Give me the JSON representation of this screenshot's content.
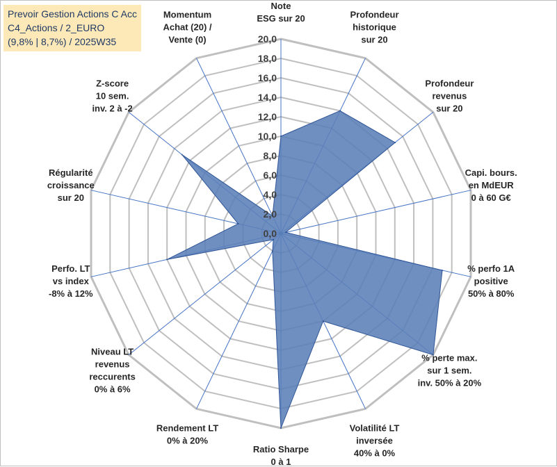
{
  "title": {
    "line1": "Prevoir Gestion Actions C Acc",
    "line2": "C4_Actions / 2_EURO",
    "line3": "(9,8% | 8,7%) / 2025W35"
  },
  "colors": {
    "fill": "#5b80b8",
    "stroke": "#2f5597",
    "grid": "#bfbfbf",
    "spoke": "#4472c4",
    "title_bg": "#fde9b8",
    "title_text": "#1f3864"
  },
  "chart_data": {
    "type": "radar",
    "rmin": 0,
    "rmax": 20,
    "step": 2,
    "ticks": [
      "0,0",
      "2,0",
      "4,0",
      "6,0",
      "8,0",
      "10,0",
      "12,0",
      "14,0",
      "16,0",
      "18,0",
      "20,0"
    ],
    "axes": [
      {
        "label": [
          "Note",
          "ESG sur 20"
        ],
        "value": 10
      },
      {
        "label": [
          "Profondeur",
          "historique",
          "sur 20"
        ],
        "value": 14
      },
      {
        "label": [
          "Profondeur",
          "revenus",
          "sur 20"
        ],
        "value": 15
      },
      {
        "label": [
          "Capi. bours.",
          "en MdEUR",
          "0 à 60 G€"
        ],
        "value": 0.5
      },
      {
        "label": [
          "% perfo 1A",
          "positive",
          "50% à 80%"
        ],
        "value": 17
      },
      {
        "label": [
          "% perte max.",
          "sur 1 sem.",
          "inv. 50% à 20%"
        ],
        "value": 20
      },
      {
        "label": [
          "Volatilité LT",
          "inversée",
          "40% à 0%"
        ],
        "value": 10
      },
      {
        "label": [
          "Ratio Sharpe",
          "0 à 1"
        ],
        "value": 20
      },
      {
        "label": [
          "Rendement LT",
          "0% à 20%"
        ],
        "value": 2
      },
      {
        "label": [
          "Niveau LT",
          "revenus",
          "reccurents",
          "0% à 6%"
        ],
        "value": 1
      },
      {
        "label": [
          "Perfo. LT",
          "vs index",
          "-8% à 12%"
        ],
        "value": 12
      },
      {
        "label": [
          "Régularité",
          "croissance",
          "sur 20"
        ],
        "value": 4.5
      },
      {
        "label": [
          "Z-score",
          "10 sem.",
          "inv. 2 à -2"
        ],
        "value": 13
      },
      {
        "label": [
          "Momentum",
          "Achat (20) /",
          "Vente (0)"
        ],
        "value": 2
      }
    ]
  }
}
